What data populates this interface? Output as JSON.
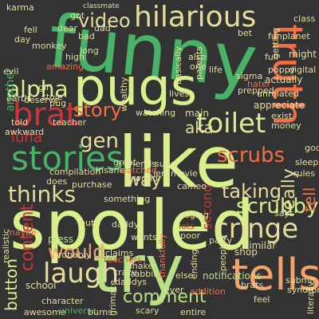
{
  "colors": {
    "background": "#333333",
    "palette": [
      "#d7f08c",
      "#48b267",
      "#f46d43",
      "#e7dd9b",
      "#c9353a",
      "#2a8a4a",
      "#b8e186",
      "#f5a26b"
    ]
  },
  "words": [
    {
      "text": "funny",
      "color": "#48b267"
    },
    {
      "text": "spoiled",
      "color": "#d7f08c"
    },
    {
      "text": "like",
      "color": "#d7f08c"
    },
    {
      "text": "try",
      "color": "#b8e186"
    },
    {
      "text": "pugs",
      "color": "#d7f08c"
    },
    {
      "text": "tells",
      "color": "#f5a26b"
    },
    {
      "text": "hilarious",
      "color": "#e7dd9b"
    },
    {
      "text": "stories",
      "color": "#48b267"
    },
    {
      "text": "brat",
      "color": "#c9353a"
    },
    {
      "text": "thinks",
      "color": "#e7dd9b"
    },
    {
      "text": "laugh",
      "color": "#e7dd9b"
    },
    {
      "text": "cringe",
      "color": "#e7dd9b"
    },
    {
      "text": "toilet",
      "color": "#d7f08c"
    },
    {
      "text": "truth",
      "color": "#f46d43"
    },
    {
      "text": "video",
      "color": "#e7dd9b"
    },
    {
      "text": "alpha",
      "color": "#d7f08c"
    },
    {
      "text": "story",
      "color": "#f46d43"
    },
    {
      "text": "gen",
      "color": "#e7dd9b"
    },
    {
      "text": "scrubs",
      "color": "#f46d43"
    },
    {
      "text": "way",
      "color": "#e7dd9b"
    },
    {
      "text": "luna",
      "color": "#c9353a"
    },
    {
      "text": "would",
      "color": "#f5a26b"
    },
    {
      "text": "comment",
      "color": "#b8e186"
    },
    {
      "text": "scrubby",
      "color": "#d7f08c"
    },
    {
      "text": "really",
      "color": "#e7dd9b"
    },
    {
      "text": "taking",
      "color": "#e7dd9b"
    },
    {
      "text": "tell",
      "color": "#f46d43"
    },
    {
      "text": "aka",
      "color": "#e7dd9b"
    },
    {
      "text": "content",
      "color": "#c9353a"
    },
    {
      "text": "button",
      "color": "#d7f08c"
    },
    {
      "text": "second",
      "color": "#c9353a"
    },
    {
      "text": "notifications",
      "color": "#b8e186"
    },
    {
      "text": "another",
      "color": "#48b267"
    },
    {
      "text": "press",
      "color": "#b8e186"
    },
    {
      "text": "main",
      "color": "#e7dd9b"
    },
    {
      "text": "appreciate",
      "color": "#e7dd9b"
    },
    {
      "text": "actually",
      "color": "#e7dd9b"
    },
    {
      "text": "school",
      "color": "#e7dd9b"
    },
    {
      "text": "shop",
      "color": "#e7dd9b"
    },
    {
      "text": "similar",
      "color": "#e7dd9b"
    },
    {
      "text": "party",
      "color": "#e7dd9b"
    },
    {
      "text": "teachers",
      "color": "#f46d43"
    },
    {
      "text": "probably",
      "color": "#e7dd9b"
    },
    {
      "text": "claims",
      "color": "#e7dd9b"
    },
    {
      "text": "poor",
      "color": "#e7dd9b"
    },
    {
      "text": "wants",
      "color": "#e7dd9b"
    },
    {
      "text": "lots",
      "color": "#c9353a"
    },
    {
      "text": "put",
      "color": "#e7dd9b"
    },
    {
      "text": "friends",
      "color": "#e7dd9b"
    },
    {
      "text": "super",
      "color": "#e7dd9b"
    },
    {
      "text": "movie",
      "color": "#e7dd9b"
    },
    {
      "text": "jerk",
      "color": "#e7dd9b"
    },
    {
      "text": "funplanet",
      "color": "#e7dd9b"
    },
    {
      "text": "class",
      "color": "#e7dd9b"
    },
    {
      "text": "might",
      "color": "#e7dd9b"
    },
    {
      "text": "full",
      "color": "#e7dd9b"
    },
    {
      "text": "got",
      "color": "#e7dd9b"
    },
    {
      "text": "karma",
      "color": "#e7dd9b"
    },
    {
      "text": "also",
      "color": "#e7dd9b"
    },
    {
      "text": "one",
      "color": "#e7dd9b"
    },
    {
      "text": "life",
      "color": "#e7dd9b"
    },
    {
      "text": "evil",
      "color": "#e7dd9b"
    },
    {
      "text": "earth",
      "color": "#e7dd9b"
    },
    {
      "text": "high",
      "color": "#e7dd9b"
    },
    {
      "text": "told",
      "color": "#e7dd9b"
    },
    {
      "text": "awkward",
      "color": "#e7dd9b"
    },
    {
      "text": "unrelated",
      "color": "#e7dd9b"
    },
    {
      "text": "exist",
      "color": "#e7dd9b"
    },
    {
      "text": "money",
      "color": "#e7dd9b"
    },
    {
      "text": "god",
      "color": "#e7dd9b"
    },
    {
      "text": "sleep",
      "color": "#e7dd9b"
    },
    {
      "text": "rules",
      "color": "#e7dd9b"
    },
    {
      "text": "says",
      "color": "#e7dd9b"
    },
    {
      "text": "people",
      "color": "#e7dd9b"
    },
    {
      "text": "addition",
      "color": "#f46d43"
    },
    {
      "text": "ever",
      "color": "#e7dd9b"
    },
    {
      "text": "else",
      "color": "#e7dd9b"
    },
    {
      "text": "rabbit",
      "color": "#e7dd9b"
    },
    {
      "text": "scary",
      "color": "#e7dd9b"
    },
    {
      "text": "entire",
      "color": "#e7dd9b"
    },
    {
      "text": "awesome",
      "color": "#e7dd9b"
    },
    {
      "text": "universe",
      "color": "#48b267"
    },
    {
      "text": "compilation",
      "color": "#e7dd9b"
    },
    {
      "text": "insane",
      "color": "#e7dd9b"
    },
    {
      "text": "teacher",
      "color": "#e7dd9b"
    },
    {
      "text": "watching",
      "color": "#e7dd9b"
    },
    {
      "text": "watched",
      "color": "#f46d43"
    },
    {
      "text": "great",
      "color": "#e7dd9b"
    },
    {
      "text": "cameo",
      "color": "#e7dd9b"
    },
    {
      "text": "something",
      "color": "#e7dd9b"
    },
    {
      "text": "edging",
      "color": "#e7dd9b"
    },
    {
      "text": "shake",
      "color": "#e7dd9b"
    },
    {
      "text": "crazy",
      "color": "#e7dd9b"
    },
    {
      "text": "daddy",
      "color": "#e7dd9b"
    },
    {
      "text": "burns",
      "color": "#e7dd9b"
    },
    {
      "text": "character",
      "color": "#e7dd9b"
    },
    {
      "text": "grimace",
      "color": "#e7dd9b"
    },
    {
      "text": "realistic",
      "color": "#e7dd9b"
    },
    {
      "text": "maybe",
      "color": "#f46d43"
    },
    {
      "text": "does",
      "color": "#e7dd9b"
    },
    {
      "text": "purchase",
      "color": "#e7dd9b"
    },
    {
      "text": "hater",
      "color": "#f46d43"
    },
    {
      "text": "prepped",
      "color": "#e7dd9b"
    },
    {
      "text": "sigma",
      "color": "#e7dd9b"
    },
    {
      "text": "poppy",
      "color": "#e7dd9b"
    },
    {
      "text": "digital",
      "color": "#e7dd9b"
    },
    {
      "text": "getting",
      "color": "#e7dd9b"
    },
    {
      "text": "parents",
      "color": "#e7dd9b"
    },
    {
      "text": "basically",
      "color": "#e7dd9b"
    },
    {
      "text": "amazing",
      "color": "#f46d43"
    },
    {
      "text": "bad",
      "color": "#e7dd9b"
    },
    {
      "text": "dad",
      "color": "#e7dd9b"
    },
    {
      "text": "dear",
      "color": "#e7dd9b"
    },
    {
      "text": "monkey",
      "color": "#e7dd9b"
    },
    {
      "text": "long",
      "color": "#e7dd9b"
    },
    {
      "text": "bet",
      "color": "#e7dd9b"
    },
    {
      "text": "world",
      "color": "#e7dd9b"
    },
    {
      "text": "lives",
      "color": "#e7dd9b"
    },
    {
      "text": "wealthy",
      "color": "#e7dd9b"
    },
    {
      "text": "deserve",
      "color": "#e7dd9b"
    },
    {
      "text": "girl",
      "color": "#e7dd9b"
    },
    {
      "text": "stole",
      "color": "#e7dd9b"
    },
    {
      "text": "brats",
      "color": "#e7dd9b"
    },
    {
      "text": "submit",
      "color": "#e7dd9b"
    },
    {
      "text": "syndrome",
      "color": "#e7dd9b"
    },
    {
      "text": "literally",
      "color": "#e7dd9b"
    },
    {
      "text": "feel",
      "color": "#e7dd9b"
    },
    {
      "text": "thankfully",
      "color": "#f46d43"
    },
    {
      "text": "ending",
      "color": "#e7dd9b"
    },
    {
      "text": "daddys",
      "color": "#e7dd9b"
    },
    {
      "text": "classmate",
      "color": "#e7dd9b"
    },
    {
      "text": "fell",
      "color": "#e7dd9b"
    },
    {
      "text": "day",
      "color": "#e7dd9b"
    },
    {
      "text": "pug",
      "color": "#e7dd9b"
    }
  ]
}
